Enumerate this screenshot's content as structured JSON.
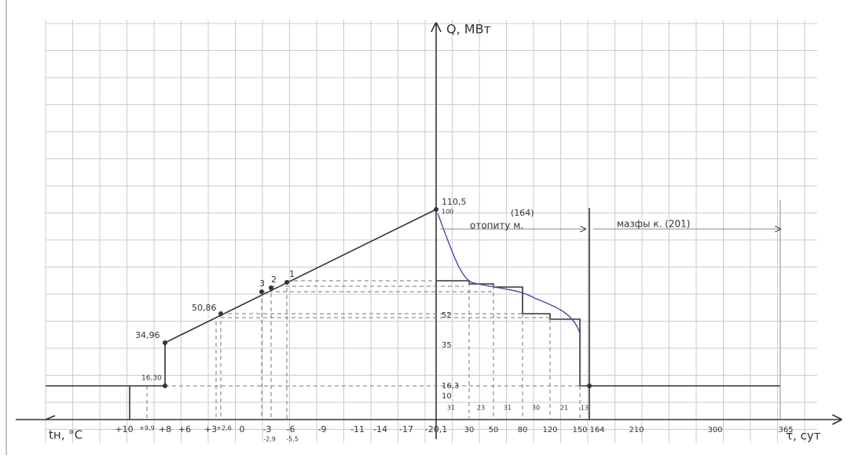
{
  "axis": {
    "q_label": "Q, МВт",
    "t_label": "tн, °C",
    "tau_label": "τ, сут"
  },
  "left_labels": {
    "q_max": "110,5",
    "q_max_sub": "100",
    "q34": "34,96",
    "q50": "50,86",
    "q16": "16,30",
    "p3": "3",
    "p2": "2",
    "p1": "1"
  },
  "right_q_labels": [
    "52",
    "35",
    "16,3",
    "10"
  ],
  "periods": {
    "heating_count": "(164)",
    "heating": "отопиту м.",
    "nonheating": "мазфы к. (201)"
  },
  "t_ticks": [
    "+10",
    "+9,9",
    "+8",
    "+6",
    "+3",
    "+2,6",
    "0",
    "-3",
    "-2,9",
    "-6",
    "-5,5",
    "-9",
    "-11",
    "-14",
    "-17",
    "-20,1"
  ],
  "tau_ticks": [
    "30",
    "50",
    "80",
    "120",
    "150",
    "164",
    "210",
    "300",
    "365"
  ],
  "segments": [
    "31",
    "23",
    "31",
    "30",
    "21",
    "13"
  ]
}
